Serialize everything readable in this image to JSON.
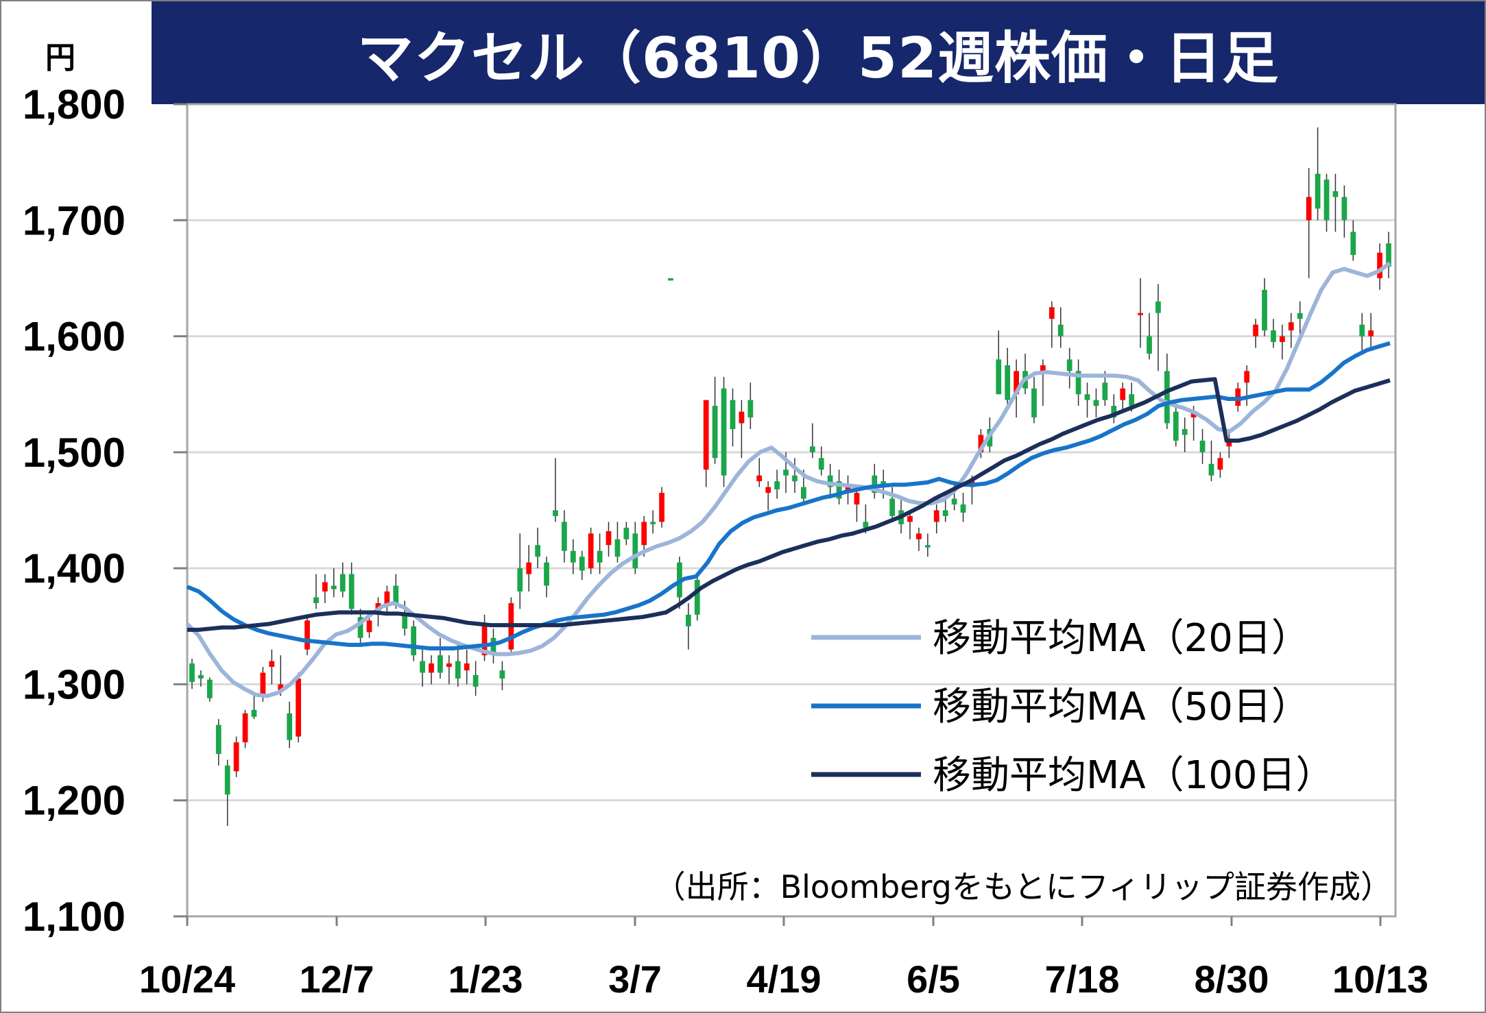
{
  "title": "マクセル（6810）52週株価・日足",
  "unit": "円",
  "source": "（出所：Bloombergをもとにフィリップ証券作成）",
  "colors": {
    "up": "#ff0000",
    "down": "#1aa64a",
    "ma20": "#9db5d9",
    "ma50": "#1874c9",
    "ma100": "#1c2f5a",
    "title_bg": "#17276b",
    "grid": "#d9d9d9"
  },
  "chart_data": {
    "type": "candlestick",
    "ylim": [
      1100,
      1800
    ],
    "yticks": [
      1100,
      1200,
      1300,
      1400,
      1500,
      1600,
      1700,
      1800
    ],
    "ytick_labels": [
      "1,100",
      "1,200",
      "1,300",
      "1,400",
      "1,500",
      "1,600",
      "1,700",
      "1,800"
    ],
    "xtick_labels": [
      "10/24",
      "12/7",
      "1/23",
      "3/7",
      "4/19",
      "6/5",
      "7/18",
      "8/30",
      "10/13"
    ],
    "grid": true,
    "legend_position": "right-middle",
    "series": [
      {
        "name": "移動平均MA（20日）",
        "color_key": "ma20",
        "values": [
          1352,
          1342,
          1326,
          1312,
          1302,
          1296,
          1291,
          1290,
          1293,
          1300,
          1310,
          1322,
          1335,
          1343,
          1346,
          1352,
          1360,
          1367,
          1370,
          1366,
          1358,
          1350,
          1343,
          1338,
          1334,
          1331,
          1328,
          1326,
          1326,
          1327,
          1329,
          1333,
          1340,
          1350,
          1362,
          1375,
          1386,
          1396,
          1404,
          1410,
          1415,
          1419,
          1422,
          1426,
          1432,
          1440,
          1452,
          1466,
          1480,
          1492,
          1500,
          1504,
          1496,
          1487,
          1479,
          1475,
          1473,
          1472,
          1471,
          1470,
          1468,
          1465,
          1462,
          1458,
          1456,
          1456,
          1459,
          1467,
          1481,
          1498,
          1514,
          1528,
          1545,
          1562,
          1568,
          1569,
          1568,
          1567,
          1566,
          1566,
          1566,
          1566,
          1565,
          1562,
          1553,
          1545,
          1541,
          1538,
          1534,
          1528,
          1520,
          1518,
          1525,
          1535,
          1543,
          1553,
          1572,
          1595,
          1618,
          1640,
          1655,
          1658,
          1655,
          1652,
          1656,
          1663
        ]
      },
      {
        "name": "移動平均MA（50日）",
        "color_key": "ma50",
        "values": [
          1384,
          1380,
          1372,
          1363,
          1356,
          1351,
          1347,
          1344,
          1342,
          1340,
          1338,
          1337,
          1336,
          1335,
          1334,
          1334,
          1335,
          1335,
          1334,
          1333,
          1332,
          1331,
          1331,
          1331,
          1332,
          1333,
          1334,
          1336,
          1340,
          1345,
          1349,
          1352,
          1355,
          1357,
          1358,
          1359,
          1360,
          1362,
          1365,
          1368,
          1372,
          1378,
          1385,
          1391,
          1393,
          1405,
          1421,
          1432,
          1439,
          1444,
          1447,
          1450,
          1452,
          1455,
          1458,
          1461,
          1463,
          1466,
          1468,
          1470,
          1471,
          1472,
          1472,
          1473,
          1474,
          1477,
          1474,
          1472,
          1472,
          1473,
          1476,
          1482,
          1489,
          1495,
          1499,
          1502,
          1504,
          1507,
          1510,
          1514,
          1519,
          1524,
          1528,
          1533,
          1540,
          1543,
          1545,
          1546,
          1547,
          1548,
          1546,
          1546,
          1548,
          1550,
          1552,
          1554,
          1554,
          1554,
          1560,
          1568,
          1577,
          1583,
          1588,
          1591,
          1594
        ]
      },
      {
        "name": "移動平均MA（100日）",
        "color_key": "ma100",
        "values": [
          1347,
          1347,
          1348,
          1349,
          1349,
          1350,
          1351,
          1352,
          1354,
          1356,
          1358,
          1360,
          1361,
          1362,
          1362,
          1362,
          1362,
          1361,
          1361,
          1360,
          1359,
          1358,
          1357,
          1355,
          1353,
          1352,
          1351,
          1351,
          1351,
          1351,
          1351,
          1351,
          1351,
          1352,
          1353,
          1354,
          1355,
          1356,
          1357,
          1358,
          1360,
          1362,
          1368,
          1375,
          1383,
          1389,
          1394,
          1399,
          1403,
          1406,
          1410,
          1414,
          1417,
          1420,
          1423,
          1425,
          1428,
          1430,
          1433,
          1436,
          1440,
          1444,
          1449,
          1454,
          1460,
          1465,
          1470,
          1475,
          1481,
          1487,
          1493,
          1497,
          1502,
          1507,
          1511,
          1516,
          1520,
          1524,
          1528,
          1531,
          1535,
          1539,
          1543,
          1548,
          1553,
          1557,
          1561,
          1562,
          1563,
          1510,
          1510,
          1512,
          1515,
          1519,
          1523,
          1527,
          1532,
          1537,
          1543,
          1548,
          1553,
          1556,
          1559,
          1562
        ]
      }
    ],
    "candles_note": "OHLC approximated from chart",
    "candles": [
      [
        1318,
        1322,
        1296,
        1302
      ],
      [
        1308,
        1312,
        1298,
        1305
      ],
      [
        1304,
        1306,
        1285,
        1288
      ],
      [
        1265,
        1270,
        1230,
        1240
      ],
      [
        1230,
        1235,
        1178,
        1205
      ],
      [
        1225,
        1255,
        1220,
        1250
      ],
      [
        1250,
        1278,
        1245,
        1275
      ],
      [
        1278,
        1290,
        1270,
        1272
      ],
      [
        1290,
        1315,
        1285,
        1310
      ],
      [
        1315,
        1330,
        1300,
        1320
      ],
      [
        1295,
        1325,
        1290,
        1300
      ],
      [
        1275,
        1285,
        1245,
        1252
      ],
      [
        1255,
        1310,
        1250,
        1305
      ],
      [
        1330,
        1360,
        1325,
        1355
      ],
      [
        1375,
        1395,
        1365,
        1370
      ],
      [
        1380,
        1395,
        1370,
        1388
      ],
      [
        1385,
        1400,
        1375,
        1382
      ],
      [
        1395,
        1405,
        1375,
        1380
      ],
      [
        1395,
        1405,
        1360,
        1365
      ],
      [
        1358,
        1365,
        1335,
        1340
      ],
      [
        1345,
        1360,
        1340,
        1355
      ],
      [
        1360,
        1375,
        1350,
        1370
      ],
      [
        1368,
        1385,
        1360,
        1380
      ],
      [
        1385,
        1395,
        1365,
        1370
      ],
      [
        1360,
        1372,
        1342,
        1348
      ],
      [
        1350,
        1355,
        1320,
        1325
      ],
      [
        1320,
        1330,
        1298,
        1310
      ],
      [
        1310,
        1325,
        1300,
        1318
      ],
      [
        1325,
        1340,
        1305,
        1310
      ],
      [
        1315,
        1325,
        1300,
        1318
      ],
      [
        1320,
        1335,
        1298,
        1305
      ],
      [
        1312,
        1330,
        1300,
        1318
      ],
      [
        1308,
        1320,
        1290,
        1298
      ],
      [
        1325,
        1360,
        1320,
        1352
      ],
      [
        1340,
        1348,
        1318,
        1325
      ],
      [
        1312,
        1320,
        1295,
        1305
      ],
      [
        1330,
        1375,
        1325,
        1370
      ],
      [
        1400,
        1430,
        1365,
        1380
      ],
      [
        1395,
        1420,
        1380,
        1405
      ],
      [
        1420,
        1435,
        1400,
        1410
      ],
      [
        1405,
        1410,
        1375,
        1385
      ],
      [
        1450,
        1495,
        1440,
        1445
      ],
      [
        1440,
        1450,
        1405,
        1415
      ],
      [
        1415,
        1425,
        1395,
        1405
      ],
      [
        1410,
        1415,
        1390,
        1398
      ],
      [
        1400,
        1435,
        1395,
        1430
      ],
      [
        1415,
        1430,
        1395,
        1405
      ],
      [
        1420,
        1440,
        1410,
        1432
      ],
      [
        1425,
        1440,
        1405,
        1410
      ],
      [
        1435,
        1440,
        1420,
        1425
      ],
      [
        1430,
        1440,
        1395,
        1400
      ],
      [
        1420,
        1445,
        1410,
        1440
      ],
      [
        1440,
        1450,
        1430,
        1438
      ],
      [
        1440,
        1470,
        1435,
        1465
      ],
      [
        1650,
        1650,
        1648,
        1648
      ],
      [
        1405,
        1410,
        1365,
        1375
      ],
      [
        1360,
        1370,
        1330,
        1350
      ],
      [
        1390,
        1395,
        1355,
        1360
      ],
      [
        1485,
        1545,
        1470,
        1545
      ],
      [
        1540,
        1565,
        1490,
        1495
      ],
      [
        1555,
        1565,
        1470,
        1480
      ],
      [
        1545,
        1555,
        1505,
        1520
      ],
      [
        1525,
        1545,
        1495,
        1535
      ],
      [
        1545,
        1560,
        1520,
        1530
      ],
      [
        1475,
        1495,
        1470,
        1480
      ],
      [
        1465,
        1475,
        1450,
        1470
      ],
      [
        1475,
        1485,
        1460,
        1468
      ],
      [
        1485,
        1500,
        1465,
        1480
      ],
      [
        1480,
        1495,
        1465,
        1475
      ],
      [
        1470,
        1485,
        1455,
        1460
      ],
      [
        1505,
        1525,
        1495,
        1500
      ],
      [
        1495,
        1505,
        1480,
        1485
      ],
      [
        1480,
        1490,
        1460,
        1470
      ],
      [
        1475,
        1485,
        1455,
        1460
      ],
      [
        1465,
        1480,
        1455,
        1470
      ],
      [
        1455,
        1470,
        1440,
        1465
      ],
      [
        1440,
        1455,
        1430,
        1435
      ],
      [
        1480,
        1490,
        1460,
        1465
      ],
      [
        1475,
        1485,
        1460,
        1470
      ],
      [
        1460,
        1470,
        1440,
        1445
      ],
      [
        1450,
        1460,
        1430,
        1438
      ],
      [
        1440,
        1450,
        1425,
        1445
      ],
      [
        1425,
        1435,
        1415,
        1430
      ],
      [
        1420,
        1430,
        1410,
        1418
      ],
      [
        1440,
        1455,
        1430,
        1450
      ],
      [
        1450,
        1465,
        1440,
        1445
      ],
      [
        1460,
        1475,
        1450,
        1455
      ],
      [
        1455,
        1465,
        1440,
        1448
      ],
      [
        1470,
        1480,
        1455,
        1475
      ],
      [
        1500,
        1520,
        1495,
        1515
      ],
      [
        1520,
        1530,
        1500,
        1505
      ],
      [
        1580,
        1605,
        1550,
        1550
      ],
      [
        1575,
        1590,
        1540,
        1545
      ],
      [
        1550,
        1580,
        1530,
        1570
      ],
      [
        1570,
        1585,
        1550,
        1555
      ],
      [
        1555,
        1565,
        1525,
        1530
      ],
      [
        1570,
        1580,
        1540,
        1575
      ],
      [
        1615,
        1630,
        1590,
        1625
      ],
      [
        1610,
        1625,
        1590,
        1600
      ],
      [
        1580,
        1590,
        1555,
        1570
      ],
      [
        1570,
        1580,
        1540,
        1550
      ],
      [
        1550,
        1560,
        1530,
        1545
      ],
      [
        1545,
        1555,
        1530,
        1540
      ],
      [
        1560,
        1570,
        1540,
        1545
      ],
      [
        1540,
        1550,
        1525,
        1530
      ],
      [
        1545,
        1560,
        1535,
        1555
      ],
      [
        1550,
        1560,
        1535,
        1540
      ],
      [
        1620,
        1650,
        1590,
        1620
      ],
      [
        1600,
        1620,
        1580,
        1585
      ],
      [
        1630,
        1645,
        1570,
        1620
      ],
      [
        1570,
        1585,
        1520,
        1525
      ],
      [
        1535,
        1545,
        1505,
        1510
      ],
      [
        1520,
        1530,
        1500,
        1515
      ],
      [
        1530,
        1540,
        1510,
        1535
      ],
      [
        1510,
        1520,
        1490,
        1500
      ],
      [
        1490,
        1510,
        1475,
        1480
      ],
      [
        1485,
        1500,
        1478,
        1495
      ],
      [
        1505,
        1520,
        1495,
        1510
      ],
      [
        1540,
        1560,
        1535,
        1555
      ],
      [
        1560,
        1575,
        1540,
        1570
      ],
      [
        1600,
        1615,
        1590,
        1610
      ],
      [
        1640,
        1650,
        1600,
        1605
      ],
      [
        1605,
        1615,
        1590,
        1595
      ],
      [
        1595,
        1610,
        1580,
        1600
      ],
      [
        1605,
        1620,
        1590,
        1612
      ],
      [
        1620,
        1630,
        1600,
        1615
      ],
      [
        1700,
        1745,
        1650,
        1720
      ],
      [
        1740,
        1780,
        1700,
        1710
      ],
      [
        1735,
        1740,
        1690,
        1700
      ],
      [
        1725,
        1740,
        1690,
        1720
      ],
      [
        1720,
        1730,
        1685,
        1700
      ],
      [
        1690,
        1700,
        1665,
        1670
      ],
      [
        1610,
        1620,
        1585,
        1600
      ],
      [
        1600,
        1620,
        1590,
        1605
      ],
      [
        1650,
        1680,
        1640,
        1672
      ],
      [
        1680,
        1690,
        1650,
        1660
      ]
    ]
  }
}
